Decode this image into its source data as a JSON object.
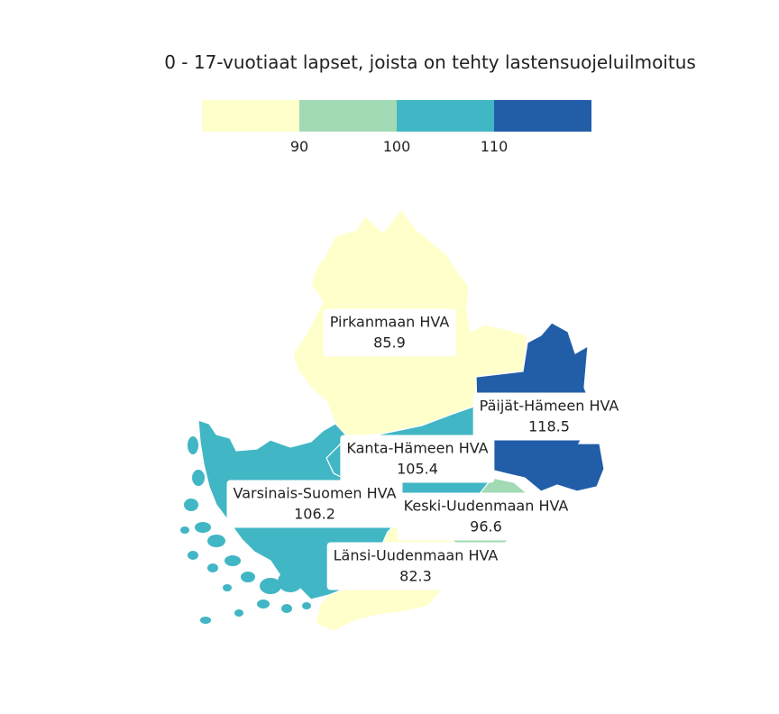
{
  "title": "0 - 17-vuotiaat lapset, joista on tehty lastensuojeluilmoitus",
  "legend": {
    "colors": [
      "#ffffcc",
      "#a1dab4",
      "#41b6c4",
      "#225ea8"
    ],
    "thresholds": [
      "90",
      "100",
      "110"
    ]
  },
  "regions": [
    {
      "name": "Pirkanmaan HVA",
      "value": "85.9",
      "color": "#ffffcc"
    },
    {
      "name": "Päijät-Hämeen HVA",
      "value": "118.5",
      "color": "#225ea8"
    },
    {
      "name": "Kanta-Hämeen HVA",
      "value": "105.4",
      "color": "#41b6c4"
    },
    {
      "name": "Varsinais-Suomen HVA",
      "value": "106.2",
      "color": "#41b6c4"
    },
    {
      "name": "Keski-Uudenmaan HVA",
      "value": "96.6",
      "color": "#a1dab4"
    },
    {
      "name": "Länsi-Uudenmaan HVA",
      "value": "82.3",
      "color": "#ffffcc"
    }
  ]
}
